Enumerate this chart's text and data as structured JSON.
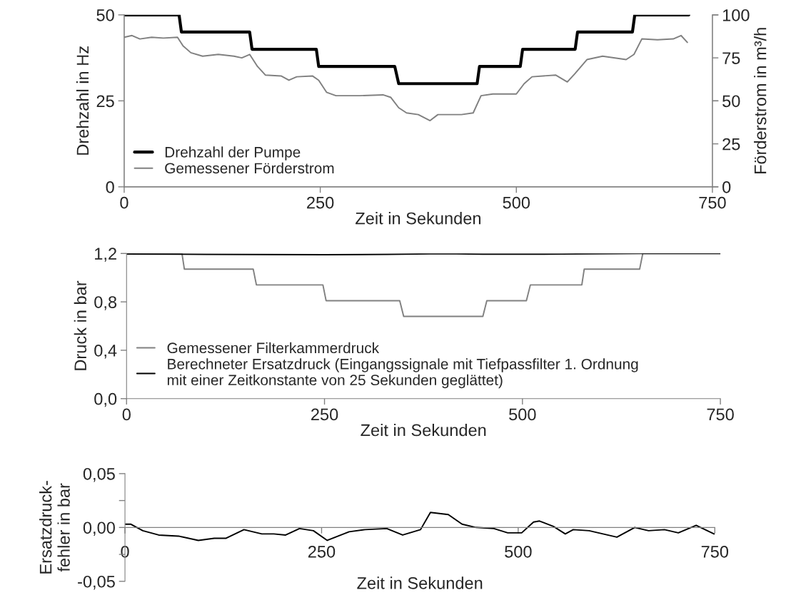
{
  "chart_data": [
    {
      "type": "line",
      "xlabel": "Zeit in Sekunden",
      "ylabel": "Drehzahl in Hz",
      "y2label": "Förderstrom in m³/h",
      "xlim": [
        0,
        750
      ],
      "xticks": [
        0,
        250,
        500,
        750
      ],
      "ylim": [
        0,
        50
      ],
      "yticks": [
        0,
        25,
        50
      ],
      "y2lim": [
        0,
        100
      ],
      "y2ticks": [
        0,
        25,
        50,
        75,
        100
      ],
      "legend": "bottom left",
      "grid": false,
      "series": [
        {
          "name": "Drehzahl der Pumpe",
          "color": "#000000",
          "x": [
            0,
            70,
            73,
            160,
            163,
            245,
            248,
            345,
            350,
            450,
            453,
            505,
            508,
            575,
            578,
            648,
            651,
            720
          ],
          "values": [
            50,
            50,
            45,
            45,
            40,
            40,
            35,
            35,
            30,
            30,
            35,
            35,
            40,
            40,
            45,
            45,
            50,
            50
          ]
        },
        {
          "name": "Gemessener Förderstrom",
          "color": "#808080",
          "axis": "y2",
          "x": [
            0,
            10,
            20,
            35,
            50,
            68,
            75,
            85,
            100,
            120,
            140,
            150,
            160,
            170,
            180,
            200,
            210,
            220,
            240,
            248,
            258,
            270,
            300,
            330,
            340,
            350,
            360,
            375,
            390,
            400,
            430,
            445,
            455,
            470,
            500,
            510,
            520,
            550,
            565,
            575,
            590,
            610,
            640,
            650,
            660,
            680,
            700,
            710,
            718
          ],
          "values": [
            87,
            88,
            86,
            87,
            86.5,
            87,
            82,
            78,
            76,
            77,
            76,
            75,
            77,
            70,
            65,
            64.5,
            62,
            64,
            64.5,
            62,
            55,
            53,
            53,
            53.5,
            52,
            46,
            43,
            42,
            38.5,
            42,
            42,
            43,
            53,
            54,
            54,
            60,
            64,
            65,
            61,
            66,
            74,
            76,
            74,
            77,
            86,
            85.5,
            86,
            88,
            84
          ]
        }
      ]
    },
    {
      "type": "line",
      "xlabel": "Zeit in Sekunden",
      "ylabel": "Druck in bar",
      "xlim": [
        0,
        750
      ],
      "xticks": [
        0,
        250,
        500,
        750
      ],
      "ylim": [
        0,
        1.2
      ],
      "yticks": [
        {
          "value": 0,
          "label": "0,0"
        },
        {
          "value": 0.4,
          "label": "0,4"
        },
        {
          "value": 0.8,
          "label": "0,8"
        },
        {
          "value": 1.2,
          "label": "1,2"
        }
      ],
      "legend": "bottom left",
      "grid": false,
      "series": [
        {
          "name": "Gemessener Filterkammerdruck",
          "color": "#808080",
          "x": [
            0,
            70,
            73,
            160,
            164,
            248,
            252,
            345,
            350,
            450,
            455,
            505,
            510,
            575,
            578,
            648,
            652,
            750
          ],
          "values": [
            1.2,
            1.2,
            1.07,
            1.07,
            0.94,
            0.94,
            0.81,
            0.81,
            0.68,
            0.68,
            0.81,
            0.81,
            0.94,
            0.94,
            1.07,
            1.07,
            1.2,
            1.2
          ]
        },
        {
          "name": "Berechneter Ersatzdruck (Eingangssignale mit Tiefpassfilter 1. Ordnung\nmit einer Zeitkonstante von 25 Sekunden geglättet)",
          "color": "#000000",
          "x": [
            0,
            100,
            250,
            330,
            400,
            450,
            550,
            650,
            750
          ],
          "values": [
            1.196,
            1.193,
            1.19,
            1.193,
            1.198,
            1.194,
            1.195,
            1.2,
            1.2
          ]
        }
      ]
    },
    {
      "type": "line",
      "xlabel": "Zeit in Sekunden",
      "ylabel": "Ersatzdruck-\nfehler in bar",
      "xlim": [
        0,
        750
      ],
      "xticks": [
        0,
        250,
        500,
        750
      ],
      "ylim": [
        -0.05,
        0.05
      ],
      "yticks": [
        {
          "value": -0.05,
          "label": "-0,05"
        },
        {
          "value": -0.025,
          "label": null
        },
        {
          "value": 0,
          "label": "0,00"
        },
        {
          "value": 0.025,
          "label": null
        },
        {
          "value": 0.05,
          "label": "0,05"
        }
      ],
      "grid": false,
      "series": [
        {
          "color": "#000000",
          "x": [
            0,
            7.6,
            22.7,
            42.9,
            68.1,
            93.3,
            113.5,
            128.6,
            151.3,
            174,
            189.2,
            204.3,
            221.9,
            239.6,
            257.2,
            285,
            305.2,
            332.9,
            353.1,
            375.8,
            388.4,
            411.1,
            428.7,
            446.4,
            469.1,
            486.7,
            504.4,
            519.5,
            527.1,
            544.8,
            559.9,
            570,
            590.2,
            607.8,
            625.5,
            648.2,
            665.8,
            686,
            703.6,
            726.3,
            749
          ],
          "values": [
            0.003,
            0.003,
            -0.003,
            -0.007,
            -0.008,
            -0.012,
            -0.01,
            -0.01,
            -0.002,
            -0.006,
            -0.006,
            -0.007,
            -0.001,
            -0.003,
            -0.012,
            -0.004,
            -0.002,
            -0.001,
            -0.007,
            -0.002,
            0.014,
            0.012,
            0.003,
            0.0,
            -0.001,
            -0.005,
            -0.005,
            0.005,
            0.006,
            0.001,
            -0.006,
            -0.002,
            -0.003,
            -0.006,
            -0.009,
            0.0,
            -0.003,
            -0.002,
            -0.005,
            0.002,
            -0.006
          ]
        }
      ]
    }
  ]
}
